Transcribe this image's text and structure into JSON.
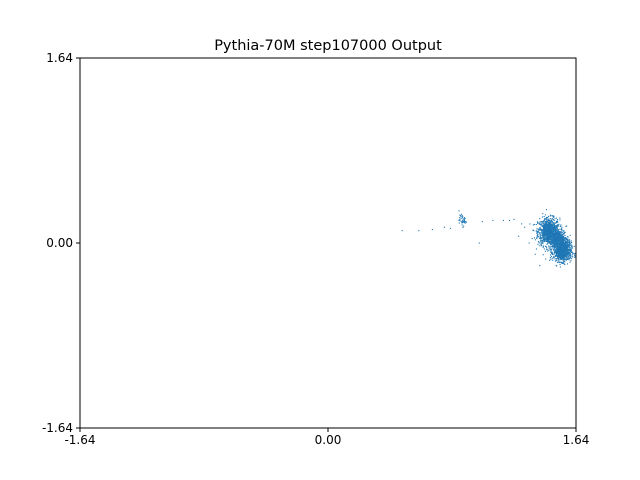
{
  "chart_data": {
    "type": "scatter",
    "title": "Pythia-70M step107000 Output",
    "xlabel": "",
    "ylabel": "",
    "xlim": [
      -1.64,
      1.64
    ],
    "ylim": [
      -1.64,
      1.64
    ],
    "x_ticks": [
      "-1.64",
      "0.00",
      "1.64"
    ],
    "y_ticks": [
      "-1.64",
      "0.00",
      "1.64"
    ],
    "x_tick_values": [
      -1.64,
      0.0,
      1.64
    ],
    "y_tick_values": [
      -1.64,
      0.0,
      1.64
    ],
    "grid": false,
    "marker_color": "#1f77b4",
    "series": [
      {
        "clusters": [
          {
            "x_center": 1.46,
            "y_center": 0.1,
            "x_spread": 0.06,
            "y_spread": 0.1,
            "count": 900
          },
          {
            "x_center": 1.55,
            "y_center": -0.08,
            "x_spread": 0.05,
            "y_spread": 0.07,
            "count": 700
          },
          {
            "x_center": 1.53,
            "y_center": 0.02,
            "x_spread": 0.05,
            "y_spread": 0.08,
            "count": 500
          },
          {
            "x_center": 0.89,
            "y_center": 0.2,
            "x_spread": 0.02,
            "y_spread": 0.04,
            "count": 40
          }
        ],
        "points": [
          [
            0.49,
            0.11
          ],
          [
            0.6,
            0.11
          ],
          [
            0.69,
            0.12
          ],
          [
            0.77,
            0.14
          ],
          [
            0.81,
            0.13
          ],
          [
            1.02,
            0.19
          ],
          [
            1.09,
            0.2
          ],
          [
            1.16,
            0.2
          ],
          [
            1.2,
            0.2
          ],
          [
            1.23,
            0.21
          ],
          [
            1.28,
            0.17
          ],
          [
            1.0,
            0.0
          ],
          [
            1.33,
            0.0
          ],
          [
            1.36,
            0.11
          ],
          [
            1.3,
            0.14
          ],
          [
            1.26,
            0.06
          ],
          [
            1.4,
            -0.2
          ],
          [
            1.42,
            0.26
          ],
          [
            1.35,
            0.04
          ],
          [
            1.37,
            -0.1
          ]
        ]
      }
    ]
  }
}
